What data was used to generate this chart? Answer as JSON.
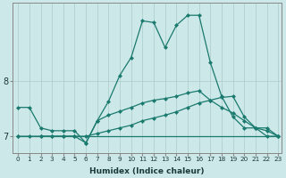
{
  "xlabel": "Humidex (Indice chaleur)",
  "bg_color": "#cce8e8",
  "line_color": "#1a7a6e",
  "grid_color": "#aacccc",
  "xlim": [
    -0.5,
    23.3
  ],
  "ylim": [
    6.7,
    9.4
  ],
  "yticks": [
    7,
    8
  ],
  "xticks": [
    0,
    1,
    2,
    3,
    4,
    5,
    6,
    7,
    8,
    9,
    10,
    11,
    12,
    13,
    14,
    15,
    16,
    17,
    18,
    19,
    20,
    21,
    22,
    23
  ],
  "line1_x": [
    0,
    1,
    2,
    3,
    4,
    5,
    6,
    7,
    8,
    9,
    10,
    11,
    12,
    13,
    14,
    15,
    16,
    17,
    18,
    19,
    20,
    21,
    22,
    23
  ],
  "line1_y": [
    7.52,
    7.52,
    7.15,
    7.1,
    7.1,
    7.1,
    6.88,
    7.28,
    7.63,
    8.1,
    8.42,
    9.08,
    9.05,
    8.6,
    9.0,
    9.18,
    9.18,
    8.33,
    7.72,
    7.35,
    7.15,
    7.15,
    7.0,
    7.0
  ],
  "line2_x": [
    0,
    23
  ],
  "line2_y": [
    7.0,
    7.0
  ],
  "line3_x": [
    0,
    1,
    2,
    3,
    4,
    5,
    6,
    7,
    8,
    9,
    10,
    11,
    12,
    13,
    14,
    15,
    16,
    17,
    18,
    19,
    20,
    21,
    22,
    23
  ],
  "line3_y": [
    7.0,
    7.0,
    7.0,
    7.0,
    7.0,
    7.0,
    7.0,
    7.05,
    7.1,
    7.15,
    7.2,
    7.28,
    7.33,
    7.38,
    7.44,
    7.52,
    7.6,
    7.65,
    7.7,
    7.72,
    7.35,
    7.15,
    7.15,
    7.0
  ],
  "line4_x": [
    2,
    3,
    4,
    5,
    6,
    7,
    8,
    9,
    10,
    11,
    12,
    13,
    14,
    15,
    16,
    17,
    18,
    19,
    20,
    21,
    22,
    23
  ],
  "line4_y": [
    7.0,
    7.0,
    7.0,
    7.0,
    6.88,
    7.28,
    7.38,
    7.45,
    7.52,
    7.6,
    7.65,
    7.68,
    7.72,
    7.78,
    7.82,
    7.65,
    7.52,
    7.42,
    7.28,
    7.15,
    7.1,
    7.0
  ]
}
